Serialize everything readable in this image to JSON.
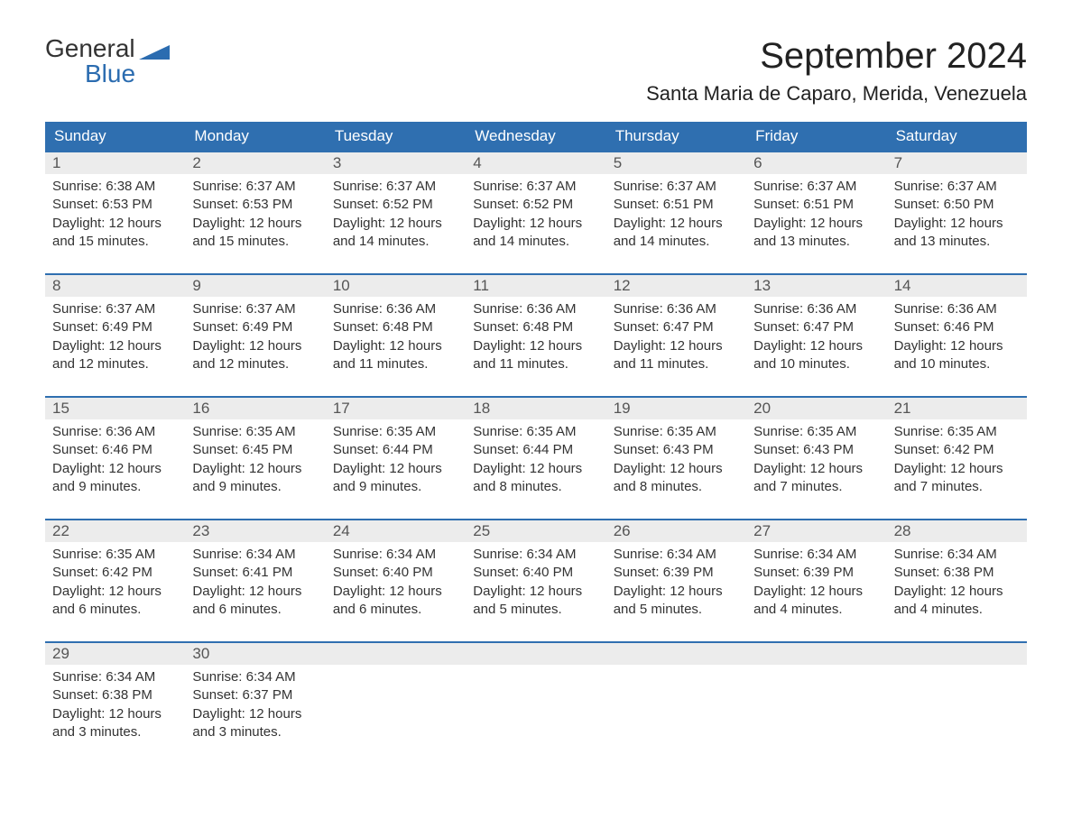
{
  "logo": {
    "line1": "General",
    "line2": "Blue",
    "accent_color": "#2b6cb0"
  },
  "header": {
    "month_title": "September 2024",
    "location": "Santa Maria de Caparo, Merida, Venezuela"
  },
  "colors": {
    "header_bar": "#2f6fb0",
    "week_divider": "#2f6fb0",
    "daynum_bg": "#ececec",
    "text": "#333333",
    "background": "#ffffff"
  },
  "days_of_week": [
    "Sunday",
    "Monday",
    "Tuesday",
    "Wednesday",
    "Thursday",
    "Friday",
    "Saturday"
  ],
  "weeks": [
    [
      {
        "num": "1",
        "sunrise": "Sunrise: 6:38 AM",
        "sunset": "Sunset: 6:53 PM",
        "daylight1": "Daylight: 12 hours",
        "daylight2": "and 15 minutes."
      },
      {
        "num": "2",
        "sunrise": "Sunrise: 6:37 AM",
        "sunset": "Sunset: 6:53 PM",
        "daylight1": "Daylight: 12 hours",
        "daylight2": "and 15 minutes."
      },
      {
        "num": "3",
        "sunrise": "Sunrise: 6:37 AM",
        "sunset": "Sunset: 6:52 PM",
        "daylight1": "Daylight: 12 hours",
        "daylight2": "and 14 minutes."
      },
      {
        "num": "4",
        "sunrise": "Sunrise: 6:37 AM",
        "sunset": "Sunset: 6:52 PM",
        "daylight1": "Daylight: 12 hours",
        "daylight2": "and 14 minutes."
      },
      {
        "num": "5",
        "sunrise": "Sunrise: 6:37 AM",
        "sunset": "Sunset: 6:51 PM",
        "daylight1": "Daylight: 12 hours",
        "daylight2": "and 14 minutes."
      },
      {
        "num": "6",
        "sunrise": "Sunrise: 6:37 AM",
        "sunset": "Sunset: 6:51 PM",
        "daylight1": "Daylight: 12 hours",
        "daylight2": "and 13 minutes."
      },
      {
        "num": "7",
        "sunrise": "Sunrise: 6:37 AM",
        "sunset": "Sunset: 6:50 PM",
        "daylight1": "Daylight: 12 hours",
        "daylight2": "and 13 minutes."
      }
    ],
    [
      {
        "num": "8",
        "sunrise": "Sunrise: 6:37 AM",
        "sunset": "Sunset: 6:49 PM",
        "daylight1": "Daylight: 12 hours",
        "daylight2": "and 12 minutes."
      },
      {
        "num": "9",
        "sunrise": "Sunrise: 6:37 AM",
        "sunset": "Sunset: 6:49 PM",
        "daylight1": "Daylight: 12 hours",
        "daylight2": "and 12 minutes."
      },
      {
        "num": "10",
        "sunrise": "Sunrise: 6:36 AM",
        "sunset": "Sunset: 6:48 PM",
        "daylight1": "Daylight: 12 hours",
        "daylight2": "and 11 minutes."
      },
      {
        "num": "11",
        "sunrise": "Sunrise: 6:36 AM",
        "sunset": "Sunset: 6:48 PM",
        "daylight1": "Daylight: 12 hours",
        "daylight2": "and 11 minutes."
      },
      {
        "num": "12",
        "sunrise": "Sunrise: 6:36 AM",
        "sunset": "Sunset: 6:47 PM",
        "daylight1": "Daylight: 12 hours",
        "daylight2": "and 11 minutes."
      },
      {
        "num": "13",
        "sunrise": "Sunrise: 6:36 AM",
        "sunset": "Sunset: 6:47 PM",
        "daylight1": "Daylight: 12 hours",
        "daylight2": "and 10 minutes."
      },
      {
        "num": "14",
        "sunrise": "Sunrise: 6:36 AM",
        "sunset": "Sunset: 6:46 PM",
        "daylight1": "Daylight: 12 hours",
        "daylight2": "and 10 minutes."
      }
    ],
    [
      {
        "num": "15",
        "sunrise": "Sunrise: 6:36 AM",
        "sunset": "Sunset: 6:46 PM",
        "daylight1": "Daylight: 12 hours",
        "daylight2": "and 9 minutes."
      },
      {
        "num": "16",
        "sunrise": "Sunrise: 6:35 AM",
        "sunset": "Sunset: 6:45 PM",
        "daylight1": "Daylight: 12 hours",
        "daylight2": "and 9 minutes."
      },
      {
        "num": "17",
        "sunrise": "Sunrise: 6:35 AM",
        "sunset": "Sunset: 6:44 PM",
        "daylight1": "Daylight: 12 hours",
        "daylight2": "and 9 minutes."
      },
      {
        "num": "18",
        "sunrise": "Sunrise: 6:35 AM",
        "sunset": "Sunset: 6:44 PM",
        "daylight1": "Daylight: 12 hours",
        "daylight2": "and 8 minutes."
      },
      {
        "num": "19",
        "sunrise": "Sunrise: 6:35 AM",
        "sunset": "Sunset: 6:43 PM",
        "daylight1": "Daylight: 12 hours",
        "daylight2": "and 8 minutes."
      },
      {
        "num": "20",
        "sunrise": "Sunrise: 6:35 AM",
        "sunset": "Sunset: 6:43 PM",
        "daylight1": "Daylight: 12 hours",
        "daylight2": "and 7 minutes."
      },
      {
        "num": "21",
        "sunrise": "Sunrise: 6:35 AM",
        "sunset": "Sunset: 6:42 PM",
        "daylight1": "Daylight: 12 hours",
        "daylight2": "and 7 minutes."
      }
    ],
    [
      {
        "num": "22",
        "sunrise": "Sunrise: 6:35 AM",
        "sunset": "Sunset: 6:42 PM",
        "daylight1": "Daylight: 12 hours",
        "daylight2": "and 6 minutes."
      },
      {
        "num": "23",
        "sunrise": "Sunrise: 6:34 AM",
        "sunset": "Sunset: 6:41 PM",
        "daylight1": "Daylight: 12 hours",
        "daylight2": "and 6 minutes."
      },
      {
        "num": "24",
        "sunrise": "Sunrise: 6:34 AM",
        "sunset": "Sunset: 6:40 PM",
        "daylight1": "Daylight: 12 hours",
        "daylight2": "and 6 minutes."
      },
      {
        "num": "25",
        "sunrise": "Sunrise: 6:34 AM",
        "sunset": "Sunset: 6:40 PM",
        "daylight1": "Daylight: 12 hours",
        "daylight2": "and 5 minutes."
      },
      {
        "num": "26",
        "sunrise": "Sunrise: 6:34 AM",
        "sunset": "Sunset: 6:39 PM",
        "daylight1": "Daylight: 12 hours",
        "daylight2": "and 5 minutes."
      },
      {
        "num": "27",
        "sunrise": "Sunrise: 6:34 AM",
        "sunset": "Sunset: 6:39 PM",
        "daylight1": "Daylight: 12 hours",
        "daylight2": "and 4 minutes."
      },
      {
        "num": "28",
        "sunrise": "Sunrise: 6:34 AM",
        "sunset": "Sunset: 6:38 PM",
        "daylight1": "Daylight: 12 hours",
        "daylight2": "and 4 minutes."
      }
    ],
    [
      {
        "num": "29",
        "sunrise": "Sunrise: 6:34 AM",
        "sunset": "Sunset: 6:38 PM",
        "daylight1": "Daylight: 12 hours",
        "daylight2": "and 3 minutes."
      },
      {
        "num": "30",
        "sunrise": "Sunrise: 6:34 AM",
        "sunset": "Sunset: 6:37 PM",
        "daylight1": "Daylight: 12 hours",
        "daylight2": "and 3 minutes."
      },
      {
        "num": "",
        "sunrise": "",
        "sunset": "",
        "daylight1": "",
        "daylight2": ""
      },
      {
        "num": "",
        "sunrise": "",
        "sunset": "",
        "daylight1": "",
        "daylight2": ""
      },
      {
        "num": "",
        "sunrise": "",
        "sunset": "",
        "daylight1": "",
        "daylight2": ""
      },
      {
        "num": "",
        "sunrise": "",
        "sunset": "",
        "daylight1": "",
        "daylight2": ""
      },
      {
        "num": "",
        "sunrise": "",
        "sunset": "",
        "daylight1": "",
        "daylight2": ""
      }
    ]
  ]
}
